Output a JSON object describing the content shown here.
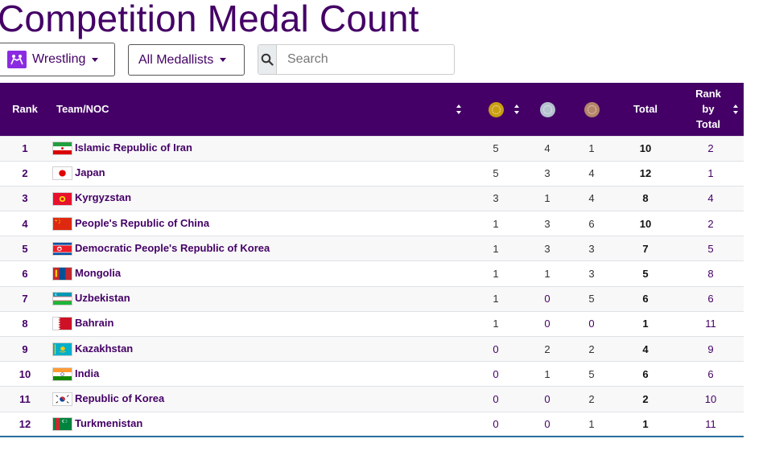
{
  "page": {
    "title": "Competition Medal Count"
  },
  "controls": {
    "sport_label": "Wrestling",
    "medal_filter_label": "All Medallists",
    "search_placeholder": "Search"
  },
  "table": {
    "headers": {
      "rank": "Rank",
      "team": "Team/NOC",
      "total": "Total",
      "rank_by_total": "Rank by Total"
    },
    "medal_colors": {
      "gold": "#c9a012",
      "silver": "#b6c2cf",
      "bronze": "#b4856a"
    },
    "rows": [
      {
        "rank": "1",
        "team": "Islamic Republic of Iran",
        "flag": "iran-flag-icon",
        "gold": "5",
        "silver": "4",
        "bronze": "1",
        "total": "10",
        "rank_by_total": "2"
      },
      {
        "rank": "2",
        "team": "Japan",
        "flag": "japan-flag-icon",
        "gold": "5",
        "silver": "3",
        "bronze": "4",
        "total": "12",
        "rank_by_total": "1"
      },
      {
        "rank": "3",
        "team": "Kyrgyzstan",
        "flag": "kyrgyzstan-flag-icon",
        "gold": "3",
        "silver": "1",
        "bronze": "4",
        "total": "8",
        "rank_by_total": "4"
      },
      {
        "rank": "4",
        "team": "People's Republic of China",
        "flag": "china-flag-icon",
        "gold": "1",
        "silver": "3",
        "bronze": "6",
        "total": "10",
        "rank_by_total": "2"
      },
      {
        "rank": "5",
        "team": "Democratic People's Republic of Korea",
        "flag": "north-korea-flag-icon",
        "gold": "1",
        "silver": "3",
        "bronze": "3",
        "total": "7",
        "rank_by_total": "5"
      },
      {
        "rank": "6",
        "team": "Mongolia",
        "flag": "mongolia-flag-icon",
        "gold": "1",
        "silver": "1",
        "bronze": "3",
        "total": "5",
        "rank_by_total": "8"
      },
      {
        "rank": "7",
        "team": "Uzbekistan",
        "flag": "uzbekistan-flag-icon",
        "gold": "1",
        "silver": "0",
        "bronze": "5",
        "total": "6",
        "rank_by_total": "6"
      },
      {
        "rank": "8",
        "team": "Bahrain",
        "flag": "bahrain-flag-icon",
        "gold": "1",
        "silver": "0",
        "bronze": "0",
        "total": "1",
        "rank_by_total": "11"
      },
      {
        "rank": "9",
        "team": "Kazakhstan",
        "flag": "kazakhstan-flag-icon",
        "gold": "0",
        "silver": "2",
        "bronze": "2",
        "total": "4",
        "rank_by_total": "9"
      },
      {
        "rank": "10",
        "team": "India",
        "flag": "india-flag-icon",
        "gold": "0",
        "silver": "1",
        "bronze": "5",
        "total": "6",
        "rank_by_total": "6"
      },
      {
        "rank": "11",
        "team": "Republic of Korea",
        "flag": "south-korea-flag-icon",
        "gold": "0",
        "silver": "0",
        "bronze": "2",
        "total": "2",
        "rank_by_total": "10"
      },
      {
        "rank": "12",
        "team": "Turkmenistan",
        "flag": "turkmenistan-flag-icon",
        "gold": "0",
        "silver": "0",
        "bronze": "1",
        "total": "1",
        "rank_by_total": "11"
      }
    ]
  }
}
